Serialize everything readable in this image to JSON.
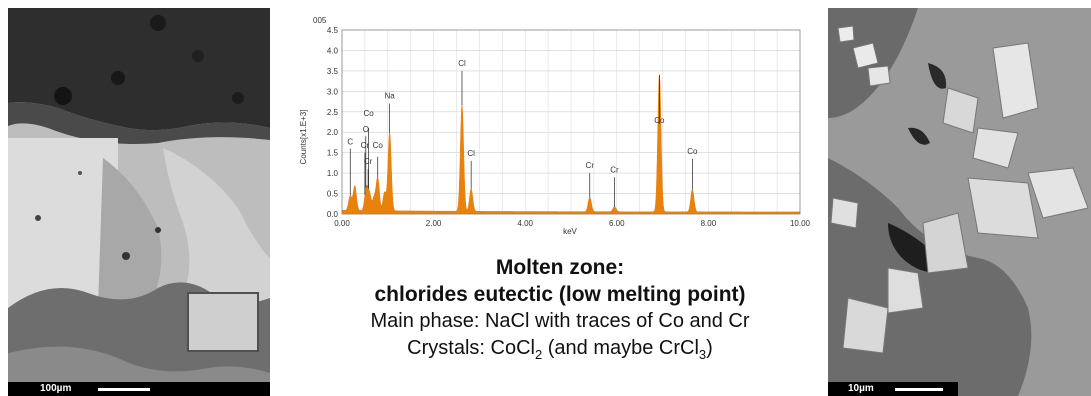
{
  "left_image": {
    "scale_label": "100µm"
  },
  "right_image": {
    "scale_label": "10µm"
  },
  "chart_data": {
    "type": "line",
    "title": "005",
    "xlabel": "keV",
    "ylabel": "Counts[x1.E+3]",
    "xlim": [
      0,
      10
    ],
    "ylim": [
      0,
      4.5
    ],
    "x_ticks": [
      "0.00",
      "2.00",
      "4.00",
      "6.00",
      "8.00",
      "10.00"
    ],
    "y_ticks": [
      "0.0",
      "0.5",
      "1.0",
      "1.5",
      "2.0",
      "2.5",
      "3.0",
      "3.5",
      "4.0",
      "4.5"
    ],
    "grid": true,
    "series_color": "#e8820c",
    "peaks": [
      {
        "x": 0.18,
        "y": 0.35
      },
      {
        "x": 0.28,
        "y": 0.6
      },
      {
        "x": 0.53,
        "y": 0.55
      },
      {
        "x": 0.6,
        "y": 0.4
      },
      {
        "x": 0.7,
        "y": 0.3
      },
      {
        "x": 0.78,
        "y": 0.8
      },
      {
        "x": 0.93,
        "y": 0.45
      },
      {
        "x": 1.04,
        "y": 1.9
      },
      {
        "x": 2.62,
        "y": 2.6
      },
      {
        "x": 2.82,
        "y": 0.55
      },
      {
        "x": 5.41,
        "y": 0.35
      },
      {
        "x": 5.95,
        "y": 0.12
      },
      {
        "x": 6.93,
        "y": 3.35
      },
      {
        "x": 7.65,
        "y": 0.55
      }
    ],
    "annotations": [
      {
        "label": "C",
        "x": 0.18,
        "line_top": 1.6,
        "label_y": 1.7
      },
      {
        "label": "O",
        "x": 0.52,
        "line_top": 1.9,
        "label_y": 2.0
      },
      {
        "label": "Co",
        "x": 0.58,
        "line_top": 2.1,
        "label_y": 2.4
      },
      {
        "label": "Cr",
        "x": 0.5,
        "line_top": 1.5,
        "label_y": 1.62
      },
      {
        "label": "Co",
        "x": 0.78,
        "line_top": 1.4,
        "label_y": 1.62
      },
      {
        "label": "Cr",
        "x": 0.57,
        "line_top": 1.1,
        "label_y": 1.22
      },
      {
        "label": "Na",
        "x": 1.04,
        "line_top": 2.7,
        "label_y": 2.82
      },
      {
        "label": "Cl",
        "x": 2.62,
        "line_top": 3.5,
        "label_y": 3.62
      },
      {
        "label": "Cl",
        "x": 2.82,
        "line_top": 1.3,
        "label_y": 1.42
      },
      {
        "label": "Cr",
        "x": 5.41,
        "line_top": 1.0,
        "label_y": 1.12
      },
      {
        "label": "Cr",
        "x": 5.95,
        "line_top": 0.9,
        "label_y": 1.02
      },
      {
        "label": "Co",
        "x": 6.93,
        "line_top": 2.2,
        "label_y": 2.22
      },
      {
        "label": "Co",
        "x": 7.65,
        "line_top": 1.35,
        "label_y": 1.47
      }
    ]
  },
  "caption": {
    "line1": "Molten zone:",
    "line2": "chlorides eutectic (low melting point)",
    "line3": "Main phase: NaCl with traces of Co and Cr",
    "line4_a": "Crystals: CoCl",
    "line4_sub1": "2",
    "line4_b": " (and maybe CrCl",
    "line4_sub2": "3",
    "line4_c": ")"
  }
}
